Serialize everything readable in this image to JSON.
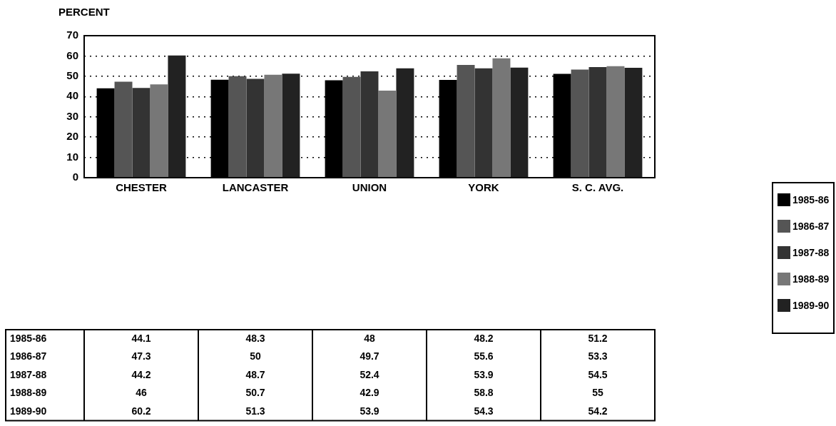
{
  "chart_data": {
    "type": "bar",
    "ylabel": "PERCENT",
    "categories": [
      "CHESTER",
      "LANCASTER",
      "UNION",
      "YORK",
      "S. C. AVG."
    ],
    "series": [
      {
        "name": "1985-86",
        "color": "#000000",
        "values": [
          44.1,
          48.3,
          48,
          48.2,
          51.2
        ]
      },
      {
        "name": "1986-87",
        "color": "#555555",
        "values": [
          47.3,
          50,
          49.7,
          55.6,
          53.3
        ]
      },
      {
        "name": "1987-88",
        "color": "#333333",
        "values": [
          44.2,
          48.7,
          52.4,
          53.9,
          54.5
        ]
      },
      {
        "name": "1988-89",
        "color": "#777777",
        "values": [
          46,
          50.7,
          42.9,
          58.8,
          55
        ]
      },
      {
        "name": "1989-90",
        "color": "#222222",
        "values": [
          60.2,
          51.3,
          53.9,
          54.3,
          54.2
        ]
      }
    ],
    "ylim": [
      0,
      70
    ],
    "yticks": [
      0,
      10,
      20,
      30,
      40,
      50,
      60,
      70
    ],
    "grid": "y",
    "legend": "right",
    "data_labels": true
  }
}
